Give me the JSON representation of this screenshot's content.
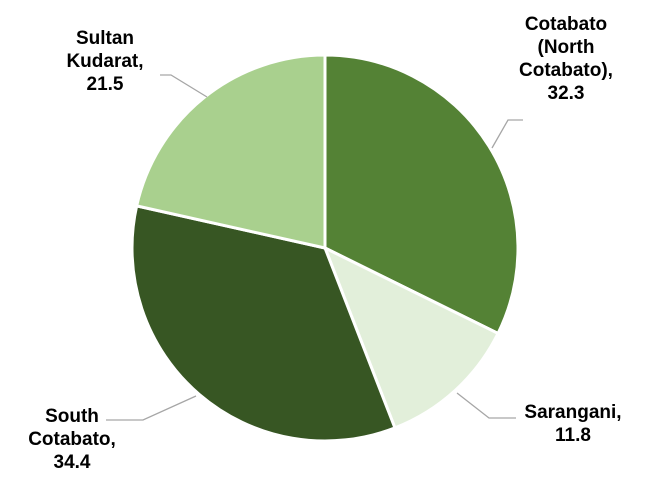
{
  "chart_data": {
    "type": "pie",
    "slices": [
      {
        "label": [
          "Cotabato",
          "(North",
          "Cotabato),"
        ],
        "value_text": "32.3",
        "value": 32.3,
        "color": "#548235"
      },
      {
        "label": [
          "Sarangani,"
        ],
        "value_text": "11.8",
        "value": 11.8,
        "color": "#e2efda"
      },
      {
        "label": [
          "South",
          "Cotabato,"
        ],
        "value_text": "34.4",
        "value": 34.4,
        "color": "#375623"
      },
      {
        "label": [
          "Sultan",
          "Kudarat,"
        ],
        "value_text": "21.5",
        "value": 21.5,
        "color": "#a9d08e"
      }
    ],
    "start_angle": "12 o'clock",
    "direction": "clockwise",
    "label_placement": "outside with leader lines"
  }
}
